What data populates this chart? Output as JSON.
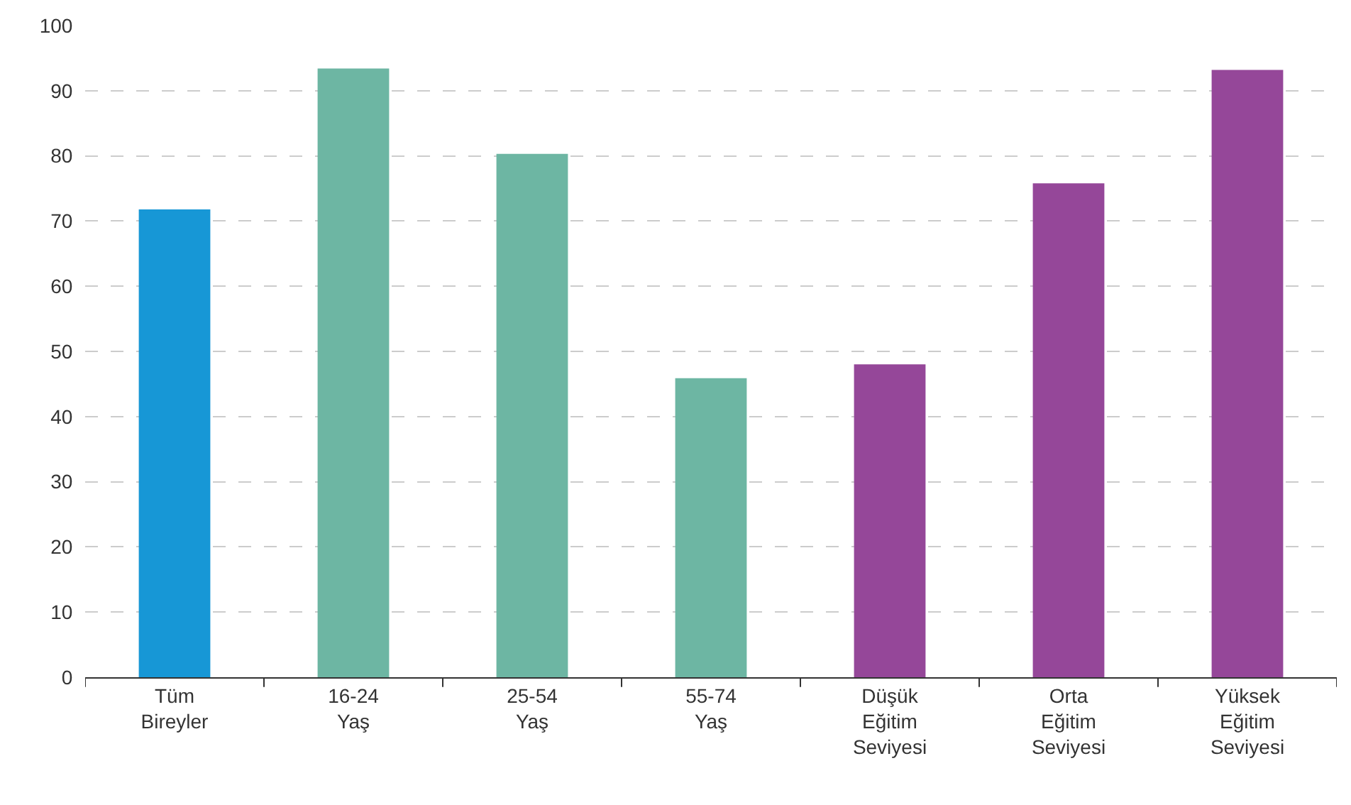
{
  "chart_data": {
    "type": "bar",
    "categories": [
      "Tüm\nBireyler",
      "16-24\nYaş",
      "25-54\nYaş",
      "55-74\nYaş",
      "Düşük\nEğitim\nSeviyesi",
      "Orta\nEğitim\nSeviyesi",
      "Yüksek\nEğitim\nSeviyesi"
    ],
    "values": [
      71.8,
      93.4,
      80.3,
      45.9,
      48.0,
      75.8,
      93.2
    ],
    "colors": [
      "#1797d6",
      "#6db6a3",
      "#6db6a3",
      "#6db6a3",
      "#954799",
      "#954799",
      "#954799"
    ],
    "ylim": [
      0,
      100
    ],
    "yticks": [
      0,
      10,
      20,
      30,
      40,
      50,
      60,
      70,
      80,
      90,
      100
    ],
    "grid": "y"
  }
}
